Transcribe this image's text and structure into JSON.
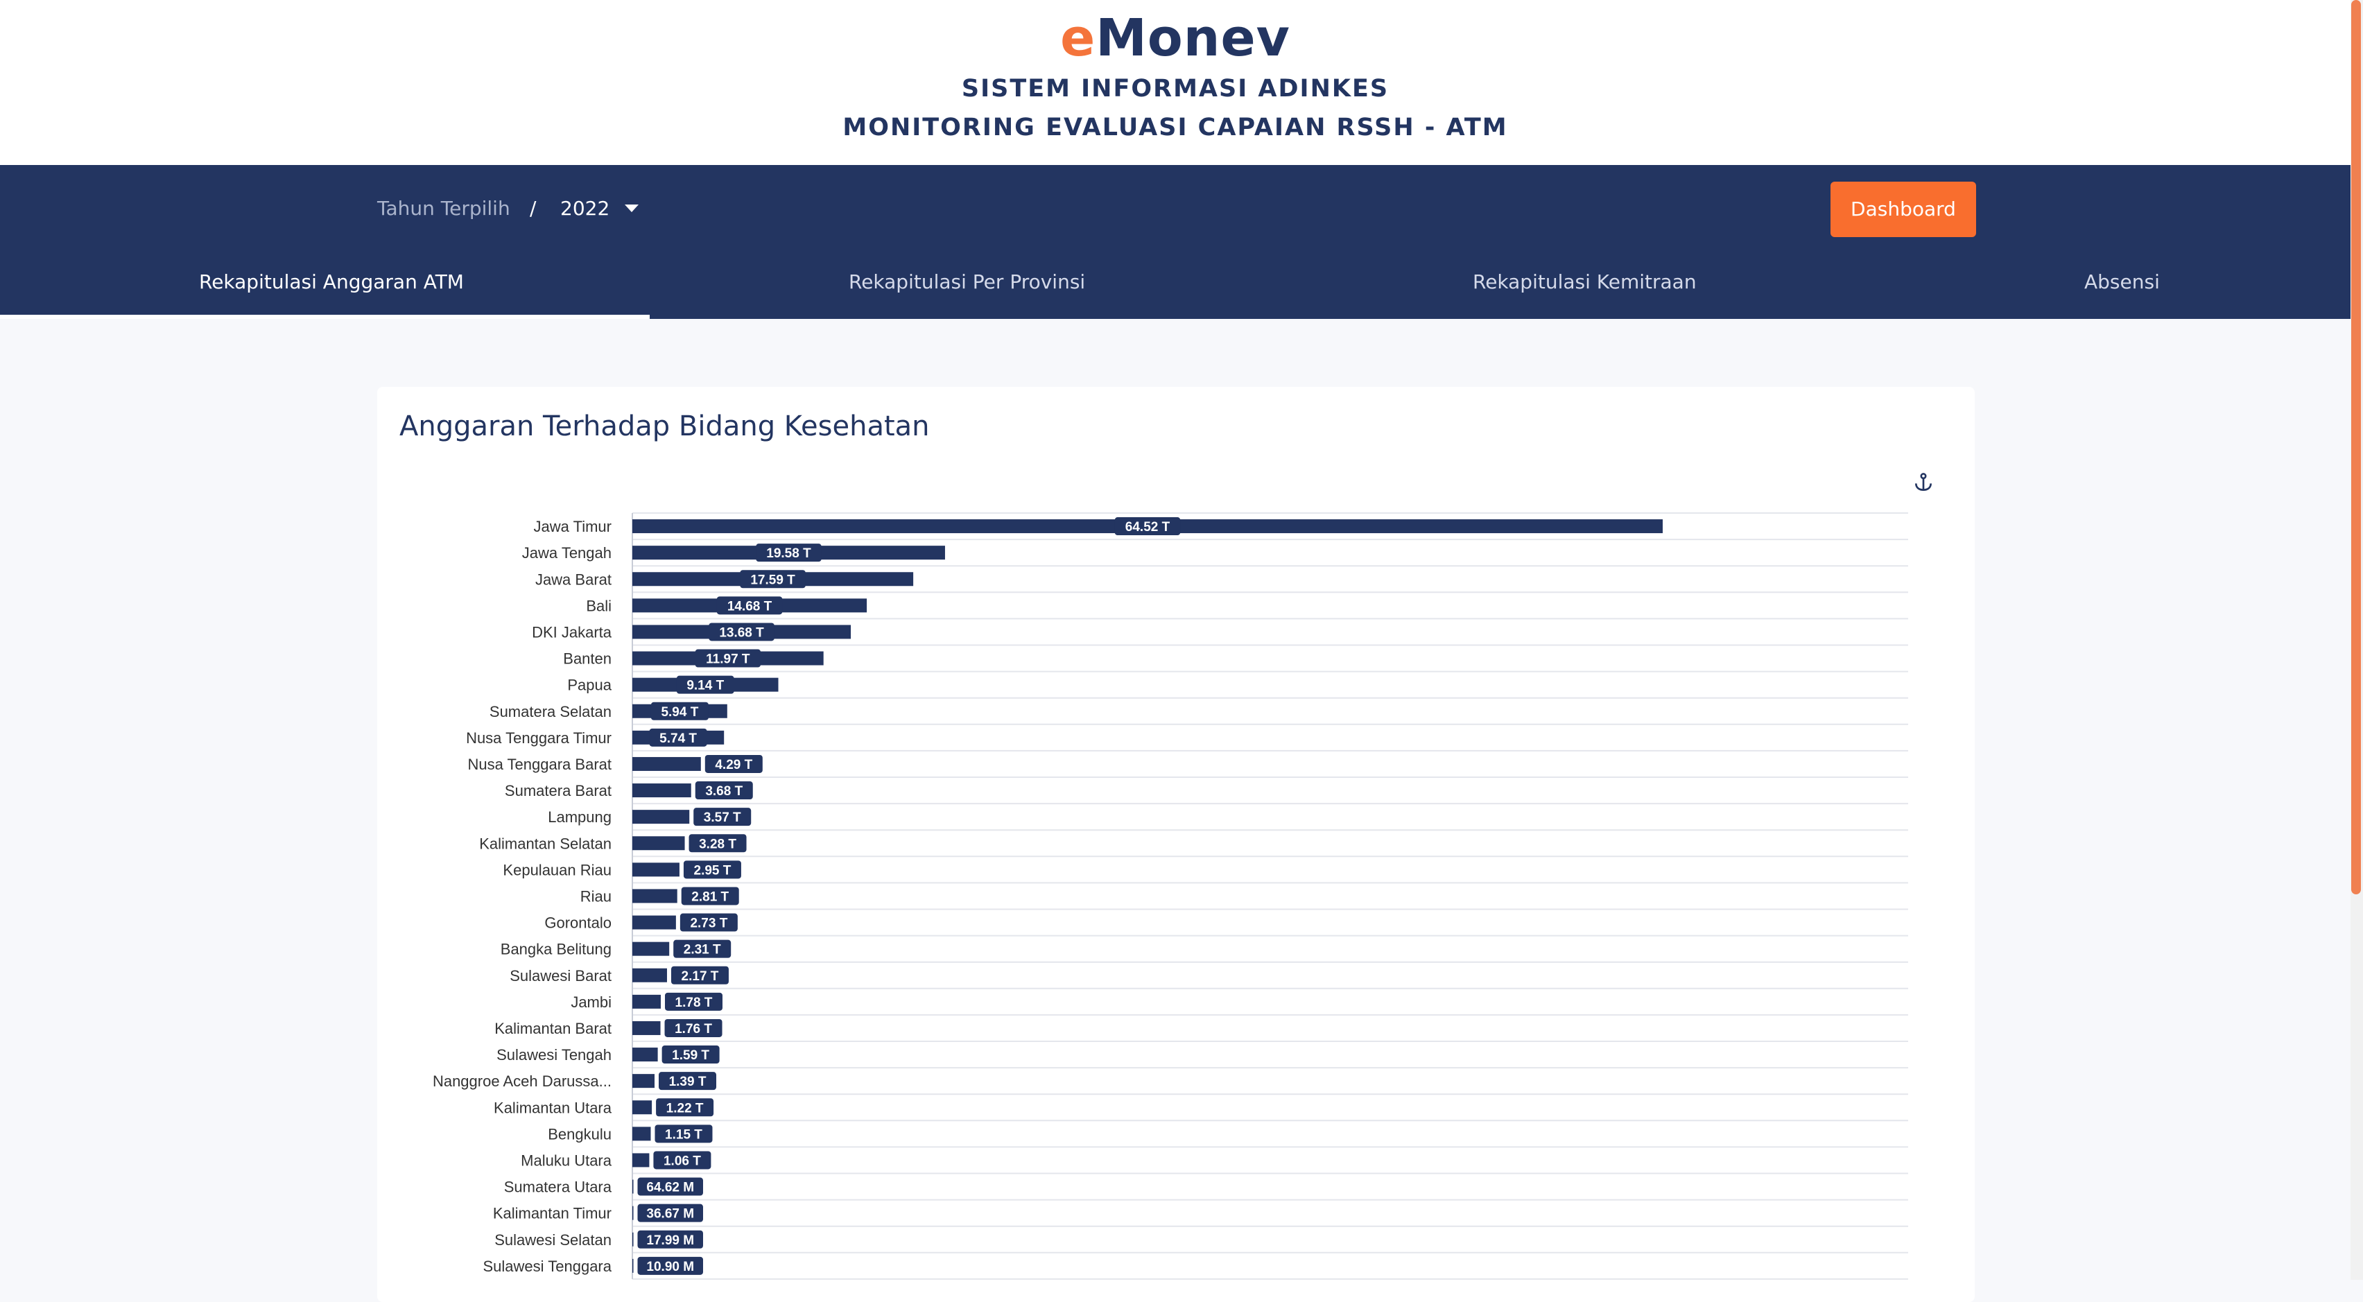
{
  "header": {
    "logo_e": "e",
    "logo_rest": "Monev",
    "subtitle1": "SISTEM INFORMASI ADINKES",
    "subtitle2": "MONITORING EVALUASI CAPAIAN RSSH - ATM",
    "logo_accent_color": "#f4743b",
    "brand_color": "#233561"
  },
  "navbar": {
    "year_label": "Tahun Terpilih",
    "separator": "/",
    "year_value": "2022",
    "dashboard_label": "Dashboard",
    "dashboard_color": "#f96e2e",
    "tabs": [
      {
        "label": "Rekapitulasi Anggaran ATM",
        "active": true
      },
      {
        "label": "Rekapitulasi Per Provinsi",
        "active": false
      },
      {
        "label": "Rekapitulasi Kemitraan",
        "active": false
      },
      {
        "label": "Absensi",
        "active": false
      }
    ]
  },
  "card": {
    "title": "Anggaran Terhadap Bidang Kesehatan",
    "export_icon": "anchor-icon"
  },
  "chart_data": {
    "type": "bar",
    "orientation": "horizontal",
    "bar_color": "#233561",
    "grid": true,
    "categories": [
      "Jawa Timur",
      "Jawa Tengah",
      "Jawa Barat",
      "Bali",
      "DKI Jakarta",
      "Banten",
      "Papua",
      "Sumatera Selatan",
      "Nusa Tenggara Timur",
      "Nusa Tenggara Barat",
      "Sumatera Barat",
      "Lampung",
      "Kalimantan Selatan",
      "Kepulauan Riau",
      "Riau",
      "Gorontalo",
      "Bangka Belitung",
      "Sulawesi Barat",
      "Jambi",
      "Kalimantan Barat",
      "Sulawesi Tengah",
      "Nanggroe Aceh Darussa...",
      "Kalimantan Utara",
      "Bengkulu",
      "Maluku Utara",
      "Sumatera Utara",
      "Kalimantan Timur",
      "Sulawesi Selatan",
      "Sulawesi Tenggara"
    ],
    "values": [
      64.52,
      19.58,
      17.59,
      14.68,
      13.68,
      11.97,
      9.14,
      5.94,
      5.74,
      4.29,
      3.68,
      3.57,
      3.28,
      2.95,
      2.81,
      2.73,
      2.31,
      2.17,
      1.78,
      1.76,
      1.59,
      1.39,
      1.22,
      1.15,
      1.06,
      0.06462,
      0.03667,
      0.01799,
      0.0109
    ],
    "value_unit": "T",
    "labels": [
      "64.52 T",
      "19.58 T",
      "17.59 T",
      "14.68 T",
      "13.68 T",
      "11.97 T",
      "9.14 T",
      "5.94 T",
      "5.74 T",
      "4.29 T",
      "3.68 T",
      "3.57 T",
      "3.28 T",
      "2.95 T",
      "2.81 T",
      "2.73 T",
      "2.31 T",
      "2.17 T",
      "1.78 T",
      "1.76 T",
      "1.59 T",
      "1.39 T",
      "1.22 T",
      "1.15 T",
      "1.06 T",
      "64.62 M",
      "36.67 M",
      "17.99 M",
      "10.90 M"
    ],
    "xlim": [
      0,
      80
    ]
  }
}
